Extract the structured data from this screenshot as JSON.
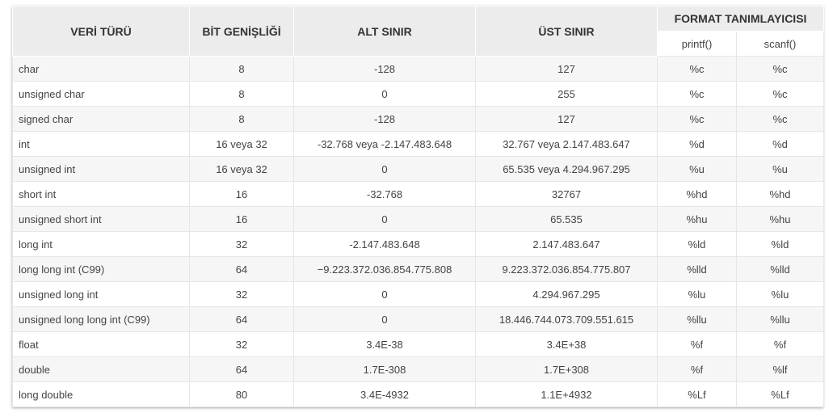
{
  "header": {
    "veri_turu": "VERİ TÜRÜ",
    "bit_genisligi": "BİT GENİŞLİĞİ",
    "alt_sinir": "ALT SINIR",
    "ust_sinir": "ÜST SINIR",
    "format": "FORMAT TANIMLAYICISI",
    "printf": "printf()",
    "scanf": "scanf()"
  },
  "rows": [
    [
      "char",
      "8",
      "-128",
      "127",
      "%c",
      "%c"
    ],
    [
      "unsigned char",
      "8",
      "0",
      "255",
      "%c",
      "%c"
    ],
    [
      "signed char",
      "8",
      "-128",
      "127",
      "%c",
      "%c"
    ],
    [
      "int",
      "16 veya 32",
      "-32.768 veya -2.147.483.648",
      "32.767 veya 2.147.483.647",
      "%d",
      "%d"
    ],
    [
      "unsigned int",
      "16 veya 32",
      "0",
      "65.535 veya 4.294.967.295",
      "%u",
      "%u"
    ],
    [
      "short int",
      "16",
      "-32.768",
      "32767",
      "%hd",
      "%hd"
    ],
    [
      "unsigned short int",
      "16",
      "0",
      "65.535",
      "%hu",
      "%hu"
    ],
    [
      "long int",
      "32",
      "-2.147.483.648",
      "2.147.483.647",
      "%ld",
      "%ld"
    ],
    [
      "long long int (C99)",
      "64",
      "−9.223.372.036.854.775.808",
      "9.223.372.036.854.775.807",
      "%lld",
      "%lld"
    ],
    [
      "unsigned long int",
      "32",
      "0",
      "4.294.967.295",
      "%lu",
      "%lu"
    ],
    [
      "unsigned long long int (C99)",
      "64",
      "0",
      "18.446.744.073.709.551.615",
      "%llu",
      "%llu"
    ],
    [
      "float",
      "32",
      "3.4E-38",
      "3.4E+38",
      "%f",
      "%f"
    ],
    [
      "double",
      "64",
      "1.7E-308",
      "1.7E+308",
      "%f",
      "%lf"
    ],
    [
      "long double",
      "80",
      "3.4E-4932",
      "1.1E+4932",
      "%Lf",
      "%Lf"
    ]
  ]
}
